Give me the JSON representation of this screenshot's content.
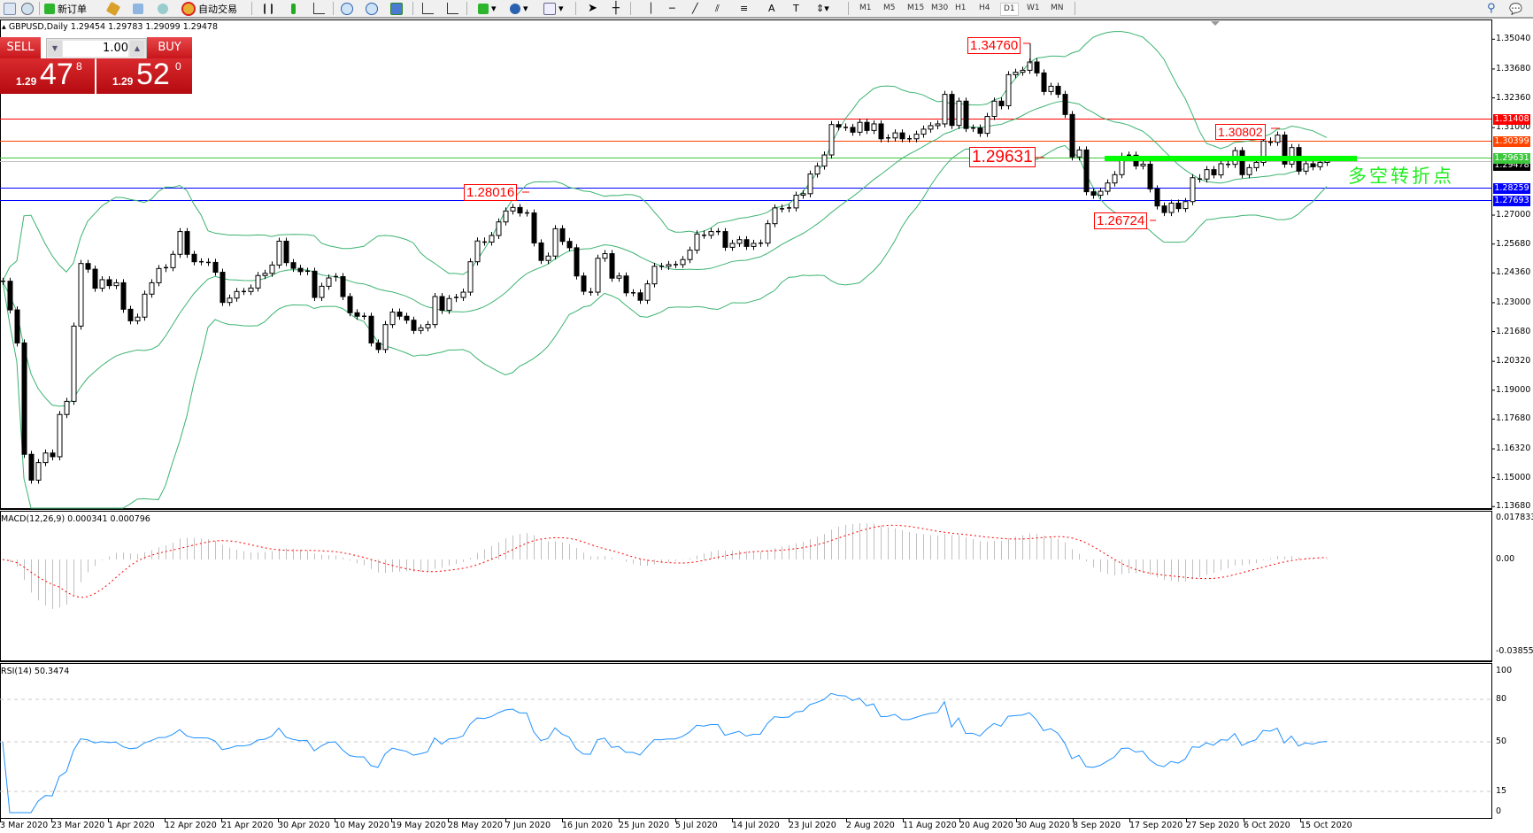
{
  "toolbar": {
    "new_order": "新订单",
    "auto_trading": "自动交易",
    "timeframes": [
      "M1",
      "M5",
      "M15",
      "M30",
      "H1",
      "H4",
      "D1",
      "W1",
      "MN"
    ],
    "active_timeframe": "D1"
  },
  "chart": {
    "symbol": "GBPUSD,Daily",
    "ohlc": "1.29454 1.29783 1.29099 1.29478",
    "pivot_text": "多空转折点"
  },
  "one_click": {
    "sell": "SELL",
    "buy": "BUY",
    "lot": "1.00",
    "sell_price": {
      "prefix": "1.29",
      "big": "47",
      "small": "8"
    },
    "buy_price": {
      "prefix": "1.29",
      "big": "52",
      "small": "0"
    }
  },
  "macd": {
    "title": "MACD(12,26,9) 0.000341 0.000796",
    "axis": [
      "0.017833",
      "0.00",
      "-0.038559"
    ]
  },
  "rsi": {
    "title": "RSI(14) 50.3474",
    "axis": [
      "100",
      "80",
      "50",
      "15",
      "0"
    ],
    "levels": [
      80,
      50,
      15
    ]
  },
  "chart_data": {
    "type": "candlestick",
    "closes": [
      1.2398,
      1.2267,
      1.2116,
      1.1607,
      1.1489,
      1.1569,
      1.1613,
      1.1596,
      1.1789,
      1.1849,
      1.2193,
      1.2479,
      1.2453,
      1.2366,
      1.2405,
      1.2378,
      1.2391,
      1.227,
      1.2217,
      1.2234,
      1.2339,
      1.2391,
      1.2456,
      1.246,
      1.2521,
      1.2625,
      1.2521,
      1.2487,
      1.2487,
      1.2484,
      1.2439,
      1.2301,
      1.2321,
      1.2351,
      1.2351,
      1.2367,
      1.2424,
      1.2434,
      1.2472,
      1.2581,
      1.2483,
      1.2457,
      1.2442,
      1.2444,
      1.2324,
      1.2375,
      1.2413,
      1.2419,
      1.2328,
      1.2254,
      1.2238,
      1.2238,
      1.2116,
      1.2086,
      1.22,
      1.2257,
      1.2238,
      1.222,
      1.2173,
      1.2185,
      1.22,
      1.2328,
      1.2265,
      1.2319,
      1.2324,
      1.2348,
      1.2487,
      1.2582,
      1.2577,
      1.2607,
      1.2669,
      1.2719,
      1.2735,
      1.271,
      1.271,
      1.2573,
      1.2493,
      1.2513,
      1.2638,
      1.258,
      1.2551,
      1.2422,
      1.2352,
      1.2348,
      1.2503,
      1.2524,
      1.2412,
      1.2422,
      1.2345,
      1.2345,
      1.2311,
      1.2386,
      1.2466,
      1.2466,
      1.2474,
      1.2474,
      1.2497,
      1.254,
      1.2614,
      1.2608,
      1.2625,
      1.2625,
      1.2553,
      1.2571,
      1.2588,
      1.2557,
      1.2571,
      1.2572,
      1.2661,
      1.2733,
      1.2729,
      1.2733,
      1.2791,
      1.2798,
      1.2888,
      1.2924,
      1.2975,
      1.3114,
      1.3103,
      1.3101,
      1.3079,
      1.3124,
      1.3087,
      1.3117,
      1.3049,
      1.3053,
      1.3076,
      1.3049,
      1.3049,
      1.307,
      1.3093,
      1.3109,
      1.3117,
      1.3252,
      1.311,
      1.3221,
      1.3096,
      1.3098,
      1.3074,
      1.3151,
      1.3221,
      1.32,
      1.3342,
      1.3353,
      1.3362,
      1.34,
      1.335,
      1.3265,
      1.3289,
      1.3252,
      1.316,
      1.2966,
      1.2998,
      1.2807,
      1.2791,
      1.2809,
      1.2847,
      1.2885,
      1.2969,
      1.2974,
      1.2925,
      1.2933,
      1.282,
      1.2742,
      1.2712,
      1.2755,
      1.273,
      1.2762,
      1.2871,
      1.2865,
      1.2908,
      1.2884,
      1.2935,
      1.2932,
      1.2995,
      1.2885,
      1.2917,
      1.2941,
      1.3039,
      1.3033,
      1.3066,
      1.2933,
      1.3009,
      1.2901,
      1.2935,
      1.2921,
      1.2941,
      1.2948
    ],
    "ylim": [
      1.1368,
      1.3504
    ],
    "price_ticks": [
      "1.35040",
      "1.33680",
      "1.32360",
      "1.31000",
      "1.27000",
      "1.25680",
      "1.24360",
      "1.23000",
      "1.21680",
      "1.20320",
      "1.19000",
      "1.17680",
      "1.16320",
      "1.15000",
      "1.13680"
    ],
    "date_labels": [
      "3 Mar 2020",
      "23 Mar 2020",
      "1 Apr 2020",
      "12 Apr 2020",
      "21 Apr 2020",
      "30 Apr 2020",
      "10 May 2020",
      "19 May 2020",
      "28 May 2020",
      "7 Jun 2020",
      "16 Jun 2020",
      "25 Jun 2020",
      "5 Jul 2020",
      "14 Jul 2020",
      "23 Jul 2020",
      "2 Aug 2020",
      "11 Aug 2020",
      "20 Aug 2020",
      "30 Aug 2020",
      "8 Sep 2020",
      "17 Sep 2020",
      "27 Sep 2020",
      "6 Oct 2020",
      "15 Oct 2020"
    ],
    "horizontal_lines": [
      {
        "price": "1.31408",
        "color": "#ff0000"
      },
      {
        "price": "1.30399",
        "color": "#ff4500"
      },
      {
        "price": "1.29631",
        "color": "#3cc83c"
      },
      {
        "price": "1.29478",
        "color": "#000000",
        "line_color": "#c0c0c0"
      },
      {
        "price": "1.28259",
        "color": "#0000ff"
      },
      {
        "price": "1.27693",
        "color": "#0000ff"
      }
    ],
    "annotations": [
      "1.34760",
      "1.30802",
      "1.29631",
      "1.28016",
      "1.26724"
    ],
    "pivot_level": 1.29631,
    "indicators": {
      "bollinger": {
        "period": 20,
        "deviation": 2,
        "color": "#3cb371"
      },
      "macd": {
        "fast": 12,
        "slow": 26,
        "signal": 9,
        "hist_color": "#c0c0c0",
        "signal_color": "#ff0000",
        "ylim": [
          -0.038559,
          0.017833
        ]
      },
      "rsi": {
        "period": 14,
        "color": "#1e90ff",
        "ylim": [
          0,
          100
        ]
      }
    }
  }
}
